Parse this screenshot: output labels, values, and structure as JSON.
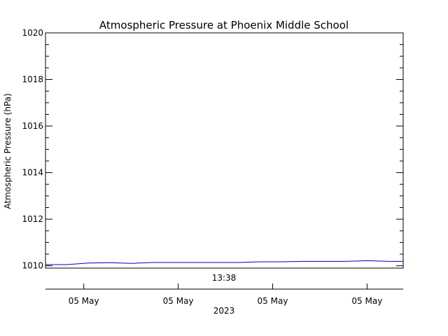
{
  "chart_data": {
    "type": "line",
    "title": "Atmospheric Pressure at Phoenix Middle School",
    "ylabel": "Atmospheric Pressure (hPa)",
    "ylim": [
      1009.9,
      1020
    ],
    "yticks": [
      1010,
      1012,
      1014,
      1016,
      1018,
      1020
    ],
    "ytick_labels": [
      "1010",
      "1012",
      "1014",
      "1016",
      "1018",
      "1020"
    ],
    "xlim": [
      0,
      1
    ],
    "time_label": "13:38",
    "xticks": [
      0.107,
      0.371,
      0.635,
      0.899
    ],
    "xtick_labels": [
      "05 May",
      "05 May",
      "05 May",
      "05 May"
    ],
    "xlabel": "2023",
    "grid": false,
    "line_color": "#0000cc",
    "series": [
      {
        "x": [
          0.0,
          0.06,
          0.12,
          0.18,
          0.24,
          0.3,
          0.36,
          0.42,
          0.48,
          0.54,
          0.6,
          0.66,
          0.72,
          0.78,
          0.84,
          0.9,
          0.96,
          1.0
        ],
        "values": [
          1010.05,
          1010.05,
          1010.12,
          1010.13,
          1010.1,
          1010.14,
          1010.14,
          1010.14,
          1010.14,
          1010.14,
          1010.17,
          1010.17,
          1010.19,
          1010.19,
          1010.19,
          1010.22,
          1010.19,
          1010.19
        ]
      }
    ]
  }
}
